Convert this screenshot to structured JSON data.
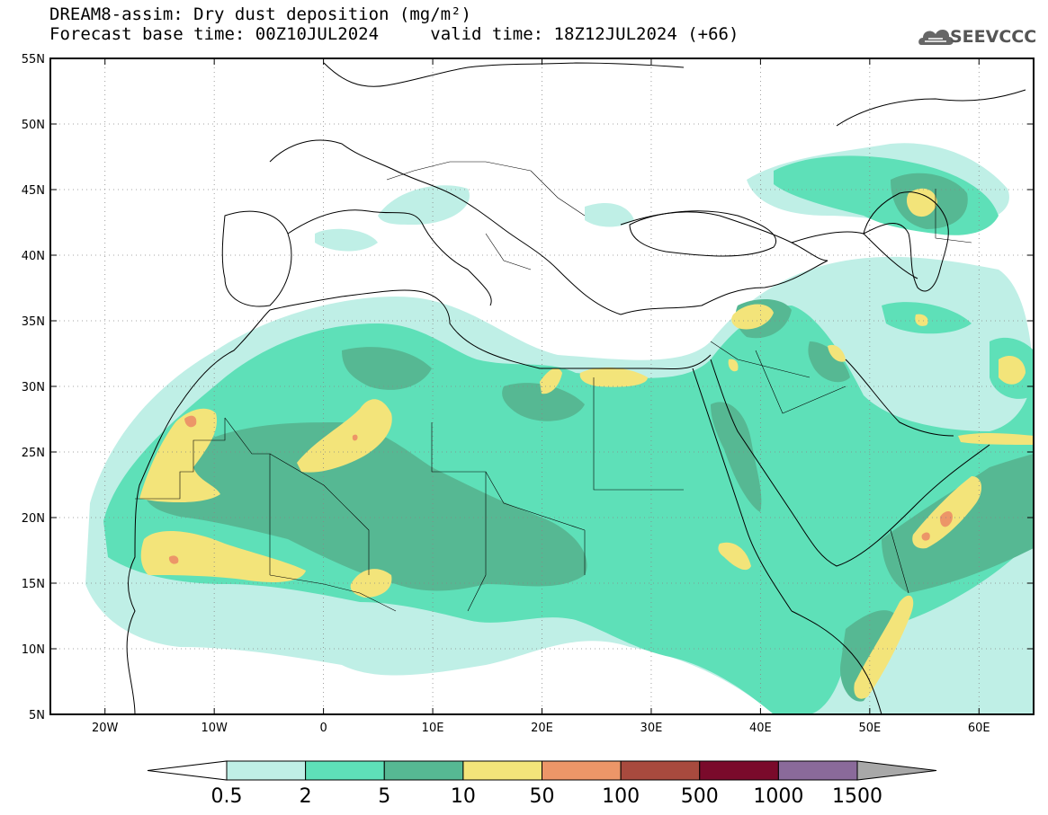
{
  "header": {
    "title": "DREAM8-assim: Dry dust deposition (mg/m²)",
    "base_time": "Forecast base time: 00Z10JUL2024",
    "valid_time": "valid time: 18Z12JUL2024 (+66)",
    "logo_text": "SEEVCCC"
  },
  "map": {
    "lon_range": [
      -25,
      65
    ],
    "lat_range": [
      5,
      55
    ],
    "lon_ticks": [
      {
        "value": -20,
        "label": "20W"
      },
      {
        "value": -10,
        "label": "10W"
      },
      {
        "value": 0,
        "label": "0"
      },
      {
        "value": 10,
        "label": "10E"
      },
      {
        "value": 20,
        "label": "20E"
      },
      {
        "value": 30,
        "label": "30E"
      },
      {
        "value": 40,
        "label": "40E"
      },
      {
        "value": 50,
        "label": "50E"
      },
      {
        "value": 60,
        "label": "60E"
      }
    ],
    "lat_ticks": [
      {
        "value": 55,
        "label": "55N"
      },
      {
        "value": 50,
        "label": "50N"
      },
      {
        "value": 45,
        "label": "45N"
      },
      {
        "value": 40,
        "label": "40N"
      },
      {
        "value": 35,
        "label": "35N"
      },
      {
        "value": 30,
        "label": "30N"
      },
      {
        "value": 25,
        "label": "25N"
      },
      {
        "value": 20,
        "label": "20N"
      },
      {
        "value": 15,
        "label": "15N"
      },
      {
        "value": 10,
        "label": "10N"
      },
      {
        "value": 5,
        "label": "5N"
      }
    ]
  },
  "colorbar": {
    "levels": [
      "0.5",
      "2",
      "5",
      "10",
      "50",
      "100",
      "500",
      "1000",
      "1500"
    ],
    "colors": [
      "#bfefe6",
      "#5ee0b8",
      "#56b893",
      "#f3e47a",
      "#ec9668",
      "#a84a3e",
      "#7a0a2b",
      "#8a6a9a"
    ],
    "low_color": "#ffffff",
    "high_color": "#a8a8a8"
  }
}
